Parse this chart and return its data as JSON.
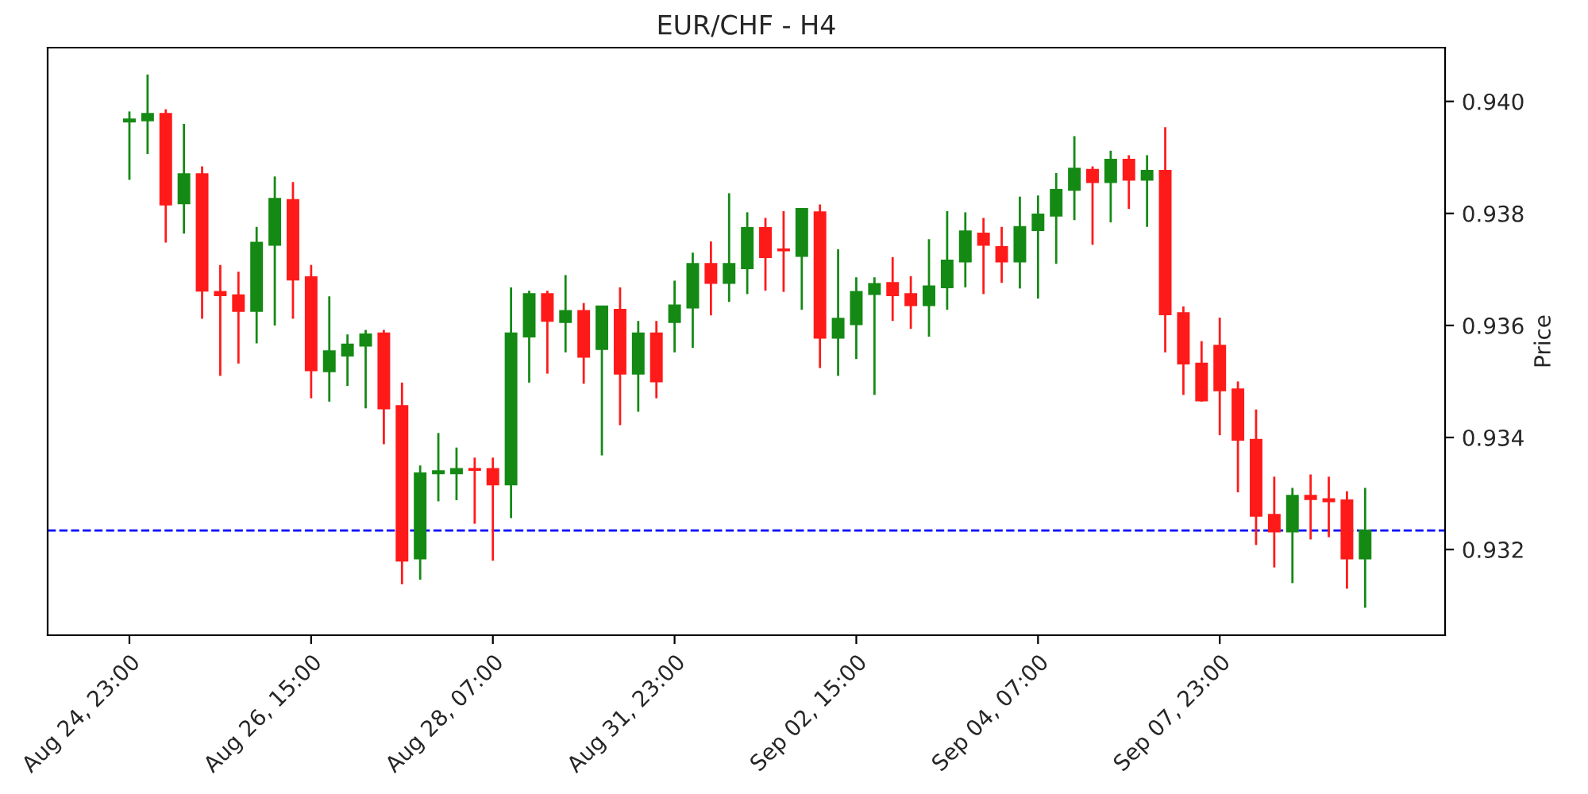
{
  "chart_data": {
    "type": "candlestick",
    "title": "EUR/CHF - H4",
    "ylabel": "Price",
    "categories": [
      "Aug 24, 23:00",
      null,
      null,
      null,
      null,
      null,
      null,
      null,
      null,
      null,
      "Aug 26, 15:00",
      null,
      null,
      null,
      null,
      null,
      null,
      null,
      null,
      null,
      "Aug 28, 07:00",
      null,
      null,
      null,
      null,
      null,
      null,
      null,
      null,
      null,
      "Aug 31, 23:00",
      null,
      null,
      null,
      null,
      null,
      null,
      null,
      null,
      null,
      "Sep 02, 15:00",
      null,
      null,
      null,
      null,
      null,
      null,
      null,
      null,
      null,
      "Sep 04, 07:00",
      null,
      null,
      null,
      null,
      null,
      null,
      null,
      null,
      null,
      "Sep 07, 23:00",
      null,
      null,
      null,
      null,
      null,
      null,
      null,
      null
    ],
    "ohlc": [
      [
        0.93964,
        0.93982,
        0.9386,
        0.93968
      ],
      [
        0.93966,
        0.94048,
        0.93906,
        0.93978
      ],
      [
        0.93978,
        0.93986,
        0.93748,
        0.93816
      ],
      [
        0.93818,
        0.9396,
        0.93764,
        0.9387
      ],
      [
        0.9387,
        0.93884,
        0.93612,
        0.93662
      ],
      [
        0.9366,
        0.93708,
        0.9351,
        0.93654
      ],
      [
        0.93654,
        0.93696,
        0.93532,
        0.93626
      ],
      [
        0.93626,
        0.93776,
        0.93568,
        0.93748
      ],
      [
        0.93744,
        0.93866,
        0.936,
        0.93826
      ],
      [
        0.93824,
        0.93856,
        0.93612,
        0.93682
      ],
      [
        0.93686,
        0.93708,
        0.9347,
        0.9352
      ],
      [
        0.93518,
        0.93652,
        0.93464,
        0.93554
      ],
      [
        0.93546,
        0.93584,
        0.93492,
        0.93566
      ],
      [
        0.93564,
        0.93592,
        0.93452,
        0.93584
      ],
      [
        0.93586,
        0.93592,
        0.93388,
        0.93452
      ],
      [
        0.93456,
        0.93498,
        0.93138,
        0.9318
      ],
      [
        0.93184,
        0.9335,
        0.93146,
        0.93336
      ],
      [
        0.93336,
        0.93408,
        0.93286,
        0.9334
      ],
      [
        0.93336,
        0.93382,
        0.93288,
        0.93344
      ],
      [
        0.93344,
        0.93364,
        0.93246,
        0.93342
      ],
      [
        0.93344,
        0.93364,
        0.9318,
        0.93316
      ],
      [
        0.93316,
        0.93668,
        0.93256,
        0.93586
      ],
      [
        0.9358,
        0.93662,
        0.93498,
        0.93656
      ],
      [
        0.93656,
        0.93662,
        0.93514,
        0.93608
      ],
      [
        0.93606,
        0.9369,
        0.93552,
        0.93626
      ],
      [
        0.93626,
        0.9364,
        0.93496,
        0.93544
      ],
      [
        0.93558,
        0.93634,
        0.93368,
        0.93634
      ],
      [
        0.93628,
        0.93668,
        0.93422,
        0.93514
      ],
      [
        0.93514,
        0.93608,
        0.93446,
        0.93586
      ],
      [
        0.93586,
        0.93608,
        0.9347,
        0.935
      ],
      [
        0.93606,
        0.9368,
        0.93552,
        0.93636
      ],
      [
        0.93632,
        0.9373,
        0.9356,
        0.9371
      ],
      [
        0.9371,
        0.9375,
        0.93618,
        0.93676
      ],
      [
        0.93676,
        0.93836,
        0.93642,
        0.9371
      ],
      [
        0.93702,
        0.93802,
        0.93656,
        0.93774
      ],
      [
        0.93774,
        0.93792,
        0.93662,
        0.93722
      ],
      [
        0.93736,
        0.93804,
        0.9366,
        0.93734
      ],
      [
        0.93724,
        0.93808,
        0.93628,
        0.93808
      ],
      [
        0.93802,
        0.93816,
        0.93524,
        0.93578
      ],
      [
        0.93578,
        0.93736,
        0.9351,
        0.93612
      ],
      [
        0.93602,
        0.93686,
        0.9354,
        0.9366
      ],
      [
        0.93656,
        0.93686,
        0.93476,
        0.93674
      ],
      [
        0.93676,
        0.93722,
        0.93608,
        0.93654
      ],
      [
        0.93656,
        0.93688,
        0.93594,
        0.93636
      ],
      [
        0.93636,
        0.93754,
        0.9358,
        0.9367
      ],
      [
        0.93668,
        0.93804,
        0.93628,
        0.93716
      ],
      [
        0.93714,
        0.93802,
        0.93668,
        0.93768
      ],
      [
        0.93764,
        0.93792,
        0.93656,
        0.93744
      ],
      [
        0.9374,
        0.93776,
        0.93676,
        0.93714
      ],
      [
        0.93714,
        0.9383,
        0.93666,
        0.93776
      ],
      [
        0.9377,
        0.93832,
        0.93648,
        0.93798
      ],
      [
        0.93796,
        0.93872,
        0.9371,
        0.93842
      ],
      [
        0.93842,
        0.93938,
        0.93788,
        0.9388
      ],
      [
        0.93878,
        0.93884,
        0.93744,
        0.93856
      ],
      [
        0.93856,
        0.93912,
        0.93784,
        0.93896
      ],
      [
        0.93896,
        0.93904,
        0.93808,
        0.9386
      ],
      [
        0.9386,
        0.93904,
        0.93776,
        0.93876
      ],
      [
        0.93876,
        0.93954,
        0.93552,
        0.9362
      ],
      [
        0.93622,
        0.93634,
        0.93476,
        0.93532
      ],
      [
        0.93532,
        0.93572,
        0.93464,
        0.93466
      ],
      [
        0.93564,
        0.93614,
        0.93404,
        0.93484
      ],
      [
        0.93486,
        0.935,
        0.93302,
        0.93396
      ],
      [
        0.93396,
        0.9345,
        0.93208,
        0.9326
      ],
      [
        0.93262,
        0.9333,
        0.93168,
        0.93232
      ],
      [
        0.93232,
        0.9331,
        0.9314,
        0.93296
      ],
      [
        0.93296,
        0.93334,
        0.93218,
        0.9329
      ],
      [
        0.9329,
        0.9333,
        0.93222,
        0.93286
      ],
      [
        0.93288,
        0.93304,
        0.9313,
        0.93184
      ],
      [
        0.93184,
        0.9331,
        0.93096,
        0.93234
      ]
    ],
    "colors": [
      "#148a14",
      "#148a14",
      "#ff1a1a",
      "#148a14",
      "#ff1a1a",
      "#ff1a1a",
      "#ff1a1a",
      "#148a14",
      "#148a14",
      "#ff1a1a",
      "#ff1a1a",
      "#148a14",
      "#148a14",
      "#148a14",
      "#ff1a1a",
      "#ff1a1a",
      "#148a14",
      "#148a14",
      "#148a14",
      "#ff1a1a",
      "#ff1a1a",
      "#148a14",
      "#148a14",
      "#ff1a1a",
      "#148a14",
      "#ff1a1a",
      "#148a14",
      "#ff1a1a",
      "#148a14",
      "#ff1a1a",
      "#148a14",
      "#148a14",
      "#ff1a1a",
      "#148a14",
      "#148a14",
      "#ff1a1a",
      "#ff1a1a",
      "#148a14",
      "#ff1a1a",
      "#148a14",
      "#148a14",
      "#148a14",
      "#ff1a1a",
      "#ff1a1a",
      "#148a14",
      "#148a14",
      "#148a14",
      "#ff1a1a",
      "#ff1a1a",
      "#148a14",
      "#148a14",
      "#148a14",
      "#148a14",
      "#ff1a1a",
      "#148a14",
      "#ff1a1a",
      "#148a14",
      "#ff1a1a",
      "#ff1a1a",
      "#ff1a1a",
      "#ff1a1a",
      "#ff1a1a",
      "#ff1a1a",
      "#ff1a1a",
      "#148a14",
      "#ff1a1a",
      "#ff1a1a",
      "#ff1a1a",
      "#148a14"
    ],
    "ylim": [
      0.93047,
      0.94096
    ],
    "yticks": [
      {
        "value": 0.932,
        "label": "0.932"
      },
      {
        "value": 0.934,
        "label": "0.934"
      },
      {
        "value": 0.936,
        "label": "0.936"
      },
      {
        "value": 0.938,
        "label": "0.938"
      },
      {
        "value": 0.94,
        "label": "0.940"
      }
    ],
    "ref_lines": [
      {
        "axis": "y",
        "value": 0.93234,
        "color": "#0000ff",
        "line_style": "dashed"
      }
    ],
    "grid": false,
    "legend": false
  }
}
